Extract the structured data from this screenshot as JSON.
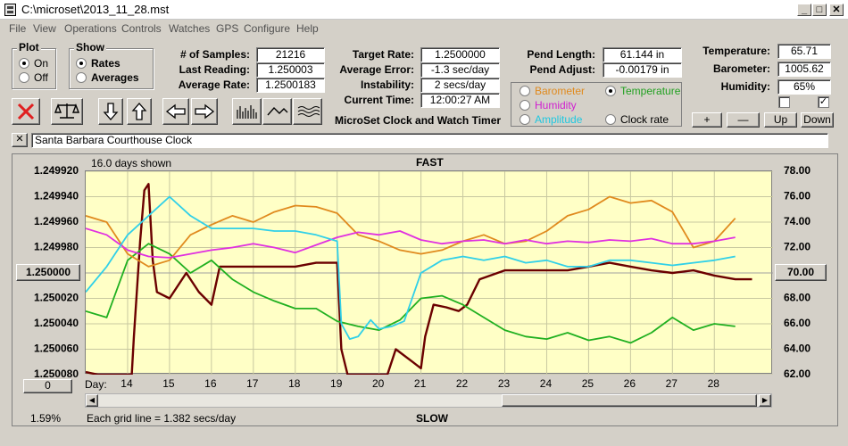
{
  "window": {
    "title": "C:\\microset\\2013_11_28.mst"
  },
  "menu": [
    "File",
    "View",
    "Operations",
    "Controls",
    "Watches",
    "GPS",
    "Configure",
    "Help"
  ],
  "plot_group": {
    "label": "Plot",
    "options": [
      "On",
      "Off"
    ],
    "selected": "On"
  },
  "show_group": {
    "label": "Show",
    "options": [
      "Rates",
      "Averages"
    ],
    "selected": "Rates"
  },
  "stats": {
    "samples_label": "# of Samples:",
    "samples": "21216",
    "last_reading_label": "Last Reading:",
    "last_reading": "1.250003",
    "average_rate_label": "Average Rate:",
    "average_rate": "1.2500183",
    "target_rate_label": "Target Rate:",
    "target_rate": "1.2500000",
    "average_error_label": "Average Error:",
    "average_error": "-1.3 sec/day",
    "instability_label": "Instability:",
    "instability": "2 secs/day",
    "current_time_label": "Current Time:",
    "current_time": "12:00:27 AM",
    "pend_length_label": "Pend Length:",
    "pend_length": "61.144 in",
    "pend_adjust_label": "Pend Adjust:",
    "pend_adjust": "-0.00179 in",
    "temperature_label": "Temperature:",
    "temperature": "65.71",
    "barometer_label": "Barometer:",
    "barometer": "1005.62",
    "humidity_label": "Humidity:",
    "humidity": "65%"
  },
  "app_caption": "MicroSet Clock and Watch Timer",
  "sensor_options": {
    "barometer": "Barometer",
    "temperature": "Temperature",
    "humidity": "Humidity",
    "amplitude": "Amplitude",
    "clock_rate": "Clock rate",
    "selected": "Temperature"
  },
  "adjust_buttons": {
    "plus": "+",
    "minus": "—",
    "up": "Up",
    "down": "Down"
  },
  "checkboxes": {
    "left_checked": false,
    "right_checked": true,
    "right_mark": "✓"
  },
  "watch_name": "Santa Barbara Courthouse Clock",
  "close_label": "✕",
  "plot": {
    "days_shown": "16.0 days shown",
    "top_label": "FAST",
    "bottom_label": "SLOW",
    "center_button": "1.250000",
    "right_center_button": "70.00",
    "zero_button": "0",
    "day_label": "Day:",
    "grid_note": "Each grid line = 1.382 secs/day",
    "percent": "1.59%"
  },
  "chart_data": {
    "type": "line",
    "xlabel": "Day:",
    "x_ticks": [
      "14",
      "15",
      "16",
      "17",
      "18",
      "19",
      "20",
      "21",
      "22",
      "23",
      "24",
      "25",
      "26",
      "27",
      "28"
    ],
    "xlim": [
      13,
      29.4
    ],
    "y_left_ticks": [
      "1.249920",
      "1.249940",
      "1.249960",
      "1.249980",
      "1.250000",
      "1.250020",
      "1.250040",
      "1.250060",
      "1.250080"
    ],
    "ylim_left": [
      1.24992,
      1.25008
    ],
    "y_left_inverted": true,
    "y_right_ticks": [
      "78.00",
      "76.00",
      "74.00",
      "72.00",
      "70.00",
      "68.00",
      "66.00",
      "64.00",
      "62.00"
    ],
    "ylim_right": [
      62,
      78
    ],
    "grid": true,
    "series": [
      {
        "name": "Clock rate",
        "color": "#6b0000",
        "axis": "left",
        "x": [
          13,
          13.3,
          14.1,
          14.15,
          14.3,
          14.4,
          14.5,
          14.6,
          14.7,
          15.0,
          15.4,
          15.7,
          16.0,
          16.2,
          16.5,
          17.0,
          17.5,
          18.0,
          18.5,
          19.0,
          19.1,
          19.25,
          19.4,
          20.0,
          20.2,
          20.4,
          20.8,
          21.0,
          21.1,
          21.3,
          21.6,
          21.9,
          22.1,
          22.4,
          23.0,
          23.5,
          24.0,
          24.5,
          25.0,
          25.5,
          26.0,
          26.5,
          27.0,
          27.5,
          28.0,
          28.5,
          28.9
        ],
        "y": [
          1.250078,
          1.25008,
          1.25008,
          1.25005,
          1.249975,
          1.249935,
          1.24993,
          1.24999,
          1.250015,
          1.25002,
          1.25,
          1.250015,
          1.250025,
          1.249995,
          1.249995,
          1.249995,
          1.249995,
          1.249995,
          1.249992,
          1.249992,
          1.25006,
          1.25008,
          1.25008,
          1.25008,
          1.25008,
          1.25006,
          1.25007,
          1.250075,
          1.25005,
          1.250025,
          1.250027,
          1.25003,
          1.250025,
          1.250005,
          1.249998,
          1.249998,
          1.249998,
          1.249998,
          1.249995,
          1.249992,
          1.249995,
          1.249998,
          1.25,
          1.249998,
          1.250002,
          1.250005,
          1.250005
        ]
      },
      {
        "name": "Temperature",
        "color": "#20b020",
        "axis": "right",
        "x": [
          13,
          13.5,
          14.0,
          14.5,
          15.0,
          15.5,
          16.0,
          16.5,
          17.0,
          17.5,
          18.0,
          18.5,
          19.0,
          19.5,
          20.0,
          20.5,
          21.0,
          21.5,
          22.0,
          22.5,
          23.0,
          23.5,
          24.0,
          24.5,
          25.0,
          25.5,
          26.0,
          26.5,
          27.0,
          27.5,
          28.0,
          28.5
        ],
        "y": [
          67.0,
          66.5,
          71.0,
          72.3,
          71.5,
          70.0,
          71.0,
          69.5,
          68.5,
          67.8,
          67.2,
          67.2,
          66.2,
          65.8,
          65.5,
          66.3,
          68.0,
          68.2,
          67.5,
          66.5,
          65.5,
          65.0,
          64.8,
          65.3,
          64.7,
          65.0,
          64.5,
          65.3,
          66.5,
          65.5,
          66.0,
          65.8
        ]
      },
      {
        "name": "Barometer",
        "color": "#e08a1e",
        "axis": "right",
        "x": [
          13,
          13.5,
          14.0,
          14.5,
          15.0,
          15.5,
          16.0,
          16.5,
          17.0,
          17.5,
          18.0,
          18.5,
          19.0,
          19.5,
          20.0,
          20.5,
          21.0,
          21.5,
          22.0,
          22.5,
          23.0,
          23.5,
          24.0,
          24.5,
          25.0,
          25.5,
          26.0,
          26.5,
          27.0,
          27.5,
          28.0,
          28.5
        ],
        "y": [
          74.5,
          74.0,
          71.5,
          70.5,
          71.0,
          73.0,
          73.8,
          74.5,
          74.0,
          74.8,
          75.3,
          75.2,
          74.7,
          73.0,
          72.5,
          71.8,
          71.5,
          71.8,
          72.5,
          73.0,
          72.3,
          72.5,
          73.3,
          74.5,
          75.0,
          76.0,
          75.5,
          75.7,
          74.8,
          72.0,
          72.5,
          74.3
        ]
      },
      {
        "name": "Humidity",
        "color": "#e030e0",
        "axis": "right",
        "x": [
          13,
          13.5,
          14.0,
          14.5,
          15.0,
          15.5,
          16.0,
          16.5,
          17.0,
          17.5,
          18.0,
          18.5,
          19.0,
          19.5,
          20.0,
          20.5,
          21.0,
          21.5,
          22.0,
          22.5,
          23.0,
          23.5,
          24.0,
          24.5,
          25.0,
          25.5,
          26.0,
          26.5,
          27.0,
          27.5,
          28.0,
          28.5
        ],
        "y": [
          73.5,
          73.0,
          71.8,
          71.3,
          71.2,
          71.5,
          71.8,
          72.0,
          72.3,
          72.0,
          71.6,
          72.2,
          72.8,
          73.2,
          73.0,
          73.3,
          72.6,
          72.3,
          72.5,
          72.6,
          72.3,
          72.6,
          72.3,
          72.5,
          72.4,
          72.6,
          72.5,
          72.7,
          72.3,
          72.3,
          72.5,
          72.8
        ]
      },
      {
        "name": "Amplitude",
        "color": "#30d0e8",
        "axis": "right",
        "x": [
          13,
          13.5,
          14.0,
          14.5,
          15.0,
          15.5,
          16.0,
          16.5,
          17.0,
          17.5,
          18.0,
          18.5,
          19.0,
          19.1,
          19.3,
          19.5,
          19.8,
          20.0,
          20.3,
          20.6,
          21.0,
          21.5,
          22.0,
          22.5,
          23.0,
          23.5,
          24.0,
          24.5,
          25.0,
          25.5,
          26.0,
          26.5,
          27.0,
          27.5,
          28.0,
          28.5
        ],
        "y": [
          68.5,
          70.5,
          73.0,
          74.5,
          76.0,
          74.5,
          73.5,
          73.5,
          73.5,
          73.3,
          73.3,
          73.0,
          72.5,
          66.0,
          64.8,
          65.0,
          66.3,
          65.6,
          65.8,
          66.2,
          70.0,
          71.0,
          71.3,
          71.0,
          71.3,
          70.8,
          71.0,
          70.5,
          70.5,
          71.0,
          71.0,
          70.8,
          70.6,
          70.8,
          71.0,
          71.3
        ]
      }
    ]
  }
}
